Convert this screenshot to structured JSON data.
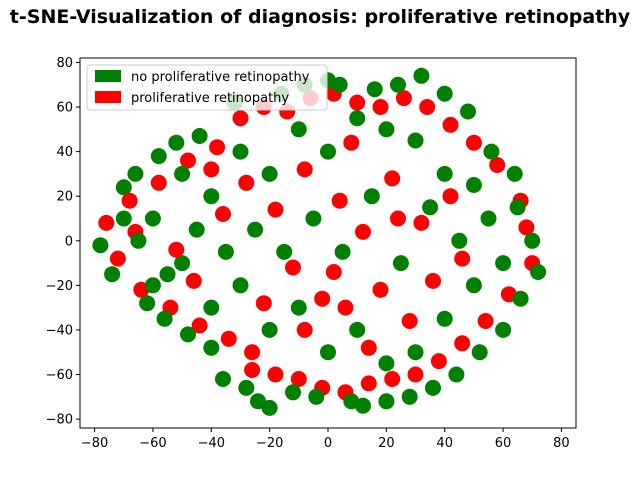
{
  "chart_data": {
    "type": "scatter",
    "title": "t-SNE-Visualization of diagnosis: proliferative retinopathy",
    "xlabel": "",
    "ylabel": "",
    "xlim": [
      -85,
      85
    ],
    "ylim": [
      -84,
      82
    ],
    "x_ticks": [
      -80,
      -60,
      -40,
      -20,
      0,
      20,
      40,
      60,
      80
    ],
    "y_ticks": [
      -80,
      -60,
      -40,
      -20,
      0,
      20,
      40,
      60,
      80
    ],
    "x_tick_labels": [
      "−80",
      "−60",
      "−40",
      "−20",
      "0",
      "20",
      "40",
      "60",
      "80"
    ],
    "y_tick_labels": [
      "−80",
      "−60",
      "−40",
      "−20",
      "0",
      "20",
      "40",
      "60",
      "80"
    ],
    "grid": false,
    "legend_position": "upper-left",
    "series": [
      {
        "name": "no proliferative retinopathy",
        "color": "#008000",
        "points": [
          [
            -78,
            -2
          ],
          [
            -74,
            -15
          ],
          [
            -70,
            24
          ],
          [
            -66,
            30
          ],
          [
            -62,
            -28
          ],
          [
            -58,
            38
          ],
          [
            -56,
            -35
          ],
          [
            -52,
            44
          ],
          [
            -48,
            -42
          ],
          [
            -44,
            47
          ],
          [
            -40,
            -48
          ],
          [
            -36,
            -62
          ],
          [
            -32,
            62
          ],
          [
            -28,
            -66
          ],
          [
            -24,
            -72
          ],
          [
            -20,
            -75
          ],
          [
            -16,
            66
          ],
          [
            -12,
            -68
          ],
          [
            -8,
            70
          ],
          [
            -4,
            -70
          ],
          [
            0,
            72
          ],
          [
            4,
            70
          ],
          [
            8,
            -72
          ],
          [
            12,
            -74
          ],
          [
            16,
            68
          ],
          [
            20,
            -72
          ],
          [
            24,
            70
          ],
          [
            28,
            -70
          ],
          [
            32,
            74
          ],
          [
            36,
            -66
          ],
          [
            40,
            66
          ],
          [
            44,
            -60
          ],
          [
            48,
            58
          ],
          [
            52,
            -50
          ],
          [
            56,
            40
          ],
          [
            60,
            -40
          ],
          [
            64,
            30
          ],
          [
            66,
            -26
          ],
          [
            70,
            0
          ],
          [
            72,
            -14
          ],
          [
            -60,
            10
          ],
          [
            -50,
            -10
          ],
          [
            -40,
            20
          ],
          [
            -30,
            -20
          ],
          [
            -20,
            30
          ],
          [
            -10,
            -30
          ],
          [
            0,
            40
          ],
          [
            10,
            -40
          ],
          [
            20,
            50
          ],
          [
            30,
            -50
          ],
          [
            40,
            30
          ],
          [
            50,
            -20
          ],
          [
            55,
            10
          ],
          [
            45,
            0
          ],
          [
            35,
            15
          ],
          [
            25,
            -10
          ],
          [
            15,
            20
          ],
          [
            5,
            -5
          ],
          [
            -5,
            10
          ],
          [
            -15,
            -5
          ],
          [
            -25,
            5
          ],
          [
            -35,
            -5
          ],
          [
            -45,
            5
          ],
          [
            -55,
            -15
          ],
          [
            -65,
            0
          ],
          [
            -70,
            10
          ],
          [
            -60,
            -20
          ],
          [
            -50,
            30
          ],
          [
            -40,
            -30
          ],
          [
            -30,
            40
          ],
          [
            -20,
            -40
          ],
          [
            -10,
            50
          ],
          [
            0,
            -50
          ],
          [
            10,
            55
          ],
          [
            20,
            -55
          ],
          [
            30,
            45
          ],
          [
            40,
            -35
          ],
          [
            50,
            25
          ],
          [
            60,
            -10
          ],
          [
            65,
            15
          ]
        ]
      },
      {
        "name": "proliferative retinopathy",
        "color": "#ff0000",
        "points": [
          [
            -76,
            8
          ],
          [
            -72,
            -8
          ],
          [
            -68,
            18
          ],
          [
            -64,
            -22
          ],
          [
            -58,
            26
          ],
          [
            -54,
            -30
          ],
          [
            -48,
            36
          ],
          [
            -44,
            -38
          ],
          [
            -38,
            42
          ],
          [
            -34,
            -44
          ],
          [
            -30,
            55
          ],
          [
            -26,
            -58
          ],
          [
            -22,
            60
          ],
          [
            -18,
            -60
          ],
          [
            -14,
            58
          ],
          [
            -10,
            -62
          ],
          [
            -6,
            64
          ],
          [
            -2,
            -66
          ],
          [
            2,
            66
          ],
          [
            6,
            -68
          ],
          [
            10,
            62
          ],
          [
            14,
            -64
          ],
          [
            18,
            60
          ],
          [
            22,
            -62
          ],
          [
            26,
            64
          ],
          [
            30,
            -60
          ],
          [
            34,
            60
          ],
          [
            38,
            -54
          ],
          [
            42,
            52
          ],
          [
            46,
            -46
          ],
          [
            50,
            44
          ],
          [
            54,
            -36
          ],
          [
            58,
            34
          ],
          [
            62,
            -24
          ],
          [
            66,
            18
          ],
          [
            70,
            -10
          ],
          [
            68,
            6
          ],
          [
            -66,
            4
          ],
          [
            -46,
            -18
          ],
          [
            -28,
            26
          ],
          [
            -12,
            -12
          ],
          [
            4,
            18
          ],
          [
            18,
            -22
          ],
          [
            32,
            8
          ],
          [
            46,
            -8
          ],
          [
            -36,
            12
          ],
          [
            -22,
            -28
          ],
          [
            -8,
            32
          ],
          [
            6,
            -30
          ],
          [
            22,
            28
          ],
          [
            36,
            -18
          ],
          [
            12,
            4
          ],
          [
            -2,
            -26
          ],
          [
            -18,
            14
          ],
          [
            28,
            -36
          ],
          [
            42,
            20
          ],
          [
            -52,
            -4
          ],
          [
            -40,
            32
          ],
          [
            8,
            44
          ],
          [
            -26,
            -50
          ],
          [
            14,
            -48
          ],
          [
            2,
            -14
          ],
          [
            -8,
            -40
          ],
          [
            24,
            10
          ]
        ]
      }
    ]
  }
}
